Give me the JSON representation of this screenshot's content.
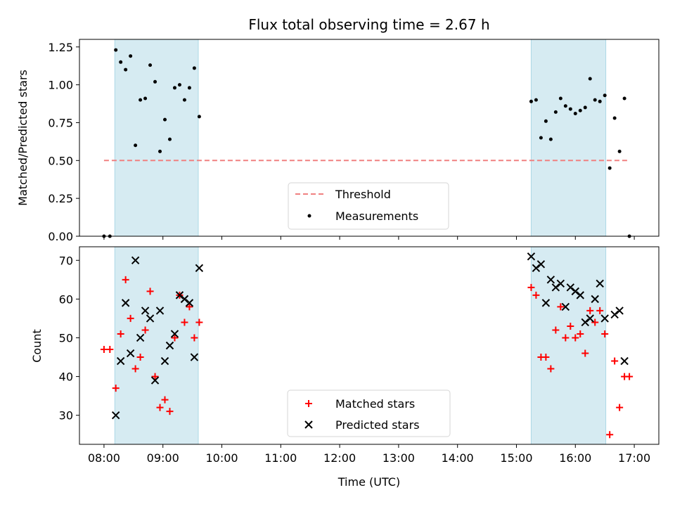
{
  "chart_data": [
    {
      "type": "scatter",
      "title": "Flux total observing time = 2.67 h",
      "xlabel": "",
      "ylabel": "Matched/Predicted stars",
      "ylim": [
        0,
        1.3
      ],
      "yticks": [
        "0.00",
        "0.25",
        "0.50",
        "0.75",
        "1.00",
        "1.25"
      ],
      "grid": false,
      "legend_position": "lower center",
      "shaded_intervals": [
        {
          "start": "08:11",
          "end": "09:36",
          "color": "#add8e6"
        },
        {
          "start": "15:15",
          "end": "16:31",
          "color": "#add8e6"
        }
      ],
      "threshold": {
        "name": "Threshold",
        "value": 0.5,
        "x_start": "08:00",
        "x_end": "16:55",
        "color": "#f08080",
        "style": "dashed"
      },
      "series": [
        {
          "name": "Measurements",
          "marker": "dot",
          "color": "#000000",
          "points": [
            [
              "08:00",
              0.0
            ],
            [
              "08:06",
              0.0
            ],
            [
              "08:12",
              1.23
            ],
            [
              "08:17",
              1.15
            ],
            [
              "08:22",
              1.1
            ],
            [
              "08:27",
              1.19
            ],
            [
              "08:32",
              0.6
            ],
            [
              "08:37",
              0.9
            ],
            [
              "08:42",
              0.91
            ],
            [
              "08:47",
              1.13
            ],
            [
              "08:52",
              1.02
            ],
            [
              "08:57",
              0.56
            ],
            [
              "09:02",
              0.77
            ],
            [
              "09:07",
              0.64
            ],
            [
              "09:12",
              0.98
            ],
            [
              "09:17",
              1.0
            ],
            [
              "09:22",
              0.9
            ],
            [
              "09:27",
              0.98
            ],
            [
              "09:32",
              1.11
            ],
            [
              "09:37",
              0.79
            ],
            [
              "15:15",
              0.89
            ],
            [
              "15:20",
              0.9
            ],
            [
              "15:25",
              0.65
            ],
            [
              "15:30",
              0.76
            ],
            [
              "15:35",
              0.64
            ],
            [
              "15:40",
              0.82
            ],
            [
              "15:45",
              0.91
            ],
            [
              "15:50",
              0.86
            ],
            [
              "15:55",
              0.84
            ],
            [
              "16:00",
              0.81
            ],
            [
              "16:05",
              0.83
            ],
            [
              "16:10",
              0.85
            ],
            [
              "16:15",
              1.04
            ],
            [
              "16:20",
              0.9
            ],
            [
              "16:25",
              0.89
            ],
            [
              "16:30",
              0.93
            ],
            [
              "16:35",
              0.45
            ],
            [
              "16:40",
              0.78
            ],
            [
              "16:45",
              0.56
            ],
            [
              "16:50",
              0.91
            ],
            [
              "16:55",
              0.0
            ]
          ]
        }
      ]
    },
    {
      "type": "scatter",
      "title": "",
      "xlabel": "Time (UTC)",
      "ylabel": "Count",
      "ylim": [
        22.5,
        73.5
      ],
      "yticks": [
        "30",
        "40",
        "50",
        "60",
        "70"
      ],
      "xlim": [
        "07:35",
        "17:25"
      ],
      "xticks": [
        "08:00",
        "09:00",
        "10:00",
        "11:00",
        "12:00",
        "13:00",
        "14:00",
        "15:00",
        "16:00",
        "17:00"
      ],
      "grid": false,
      "legend_position": "lower center",
      "shaded_intervals": [
        {
          "start": "08:11",
          "end": "09:36",
          "color": "#add8e6"
        },
        {
          "start": "15:15",
          "end": "16:31",
          "color": "#add8e6"
        }
      ],
      "series": [
        {
          "name": "Matched stars",
          "marker": "plus",
          "color": "#ff0000",
          "points": [
            [
              "08:00",
              47
            ],
            [
              "08:06",
              47
            ],
            [
              "08:12",
              37
            ],
            [
              "08:17",
              51
            ],
            [
              "08:22",
              65
            ],
            [
              "08:27",
              55
            ],
            [
              "08:32",
              42
            ],
            [
              "08:37",
              45
            ],
            [
              "08:42",
              52
            ],
            [
              "08:47",
              62
            ],
            [
              "08:52",
              40
            ],
            [
              "08:57",
              32
            ],
            [
              "09:02",
              34
            ],
            [
              "09:07",
              31
            ],
            [
              "09:12",
              50
            ],
            [
              "09:17",
              61
            ],
            [
              "09:22",
              54
            ],
            [
              "09:27",
              58
            ],
            [
              "09:32",
              50
            ],
            [
              "09:37",
              54
            ],
            [
              "15:15",
              63
            ],
            [
              "15:20",
              61
            ],
            [
              "15:25",
              45
            ],
            [
              "15:30",
              45
            ],
            [
              "15:35",
              42
            ],
            [
              "15:40",
              52
            ],
            [
              "15:45",
              58
            ],
            [
              "15:50",
              50
            ],
            [
              "15:55",
              53
            ],
            [
              "16:00",
              50
            ],
            [
              "16:05",
              51
            ],
            [
              "16:10",
              46
            ],
            [
              "16:15",
              57
            ],
            [
              "16:20",
              54
            ],
            [
              "16:25",
              57
            ],
            [
              "16:30",
              51
            ],
            [
              "16:35",
              25
            ],
            [
              "16:40",
              44
            ],
            [
              "16:45",
              32
            ],
            [
              "16:50",
              40
            ],
            [
              "16:55",
              40
            ]
          ]
        },
        {
          "name": "Predicted stars",
          "marker": "x",
          "color": "#000000",
          "points": [
            [
              "08:12",
              30
            ],
            [
              "08:17",
              44
            ],
            [
              "08:22",
              59
            ],
            [
              "08:27",
              46
            ],
            [
              "08:32",
              70
            ],
            [
              "08:37",
              50
            ],
            [
              "08:42",
              57
            ],
            [
              "08:47",
              55
            ],
            [
              "08:52",
              39
            ],
            [
              "08:57",
              57
            ],
            [
              "09:02",
              44
            ],
            [
              "09:07",
              48
            ],
            [
              "09:12",
              51
            ],
            [
              "09:17",
              61
            ],
            [
              "09:22",
              60
            ],
            [
              "09:27",
              59
            ],
            [
              "09:32",
              45
            ],
            [
              "09:37",
              68
            ],
            [
              "15:15",
              71
            ],
            [
              "15:20",
              68
            ],
            [
              "15:25",
              69
            ],
            [
              "15:30",
              59
            ],
            [
              "15:35",
              65
            ],
            [
              "15:40",
              63
            ],
            [
              "15:45",
              64
            ],
            [
              "15:50",
              58
            ],
            [
              "15:55",
              63
            ],
            [
              "16:00",
              62
            ],
            [
              "16:05",
              61
            ],
            [
              "16:10",
              54
            ],
            [
              "16:15",
              55
            ],
            [
              "16:20",
              60
            ],
            [
              "16:25",
              64
            ],
            [
              "16:30",
              55
            ],
            [
              "16:40",
              56
            ],
            [
              "16:45",
              57
            ],
            [
              "16:50",
              44
            ]
          ]
        }
      ]
    }
  ]
}
